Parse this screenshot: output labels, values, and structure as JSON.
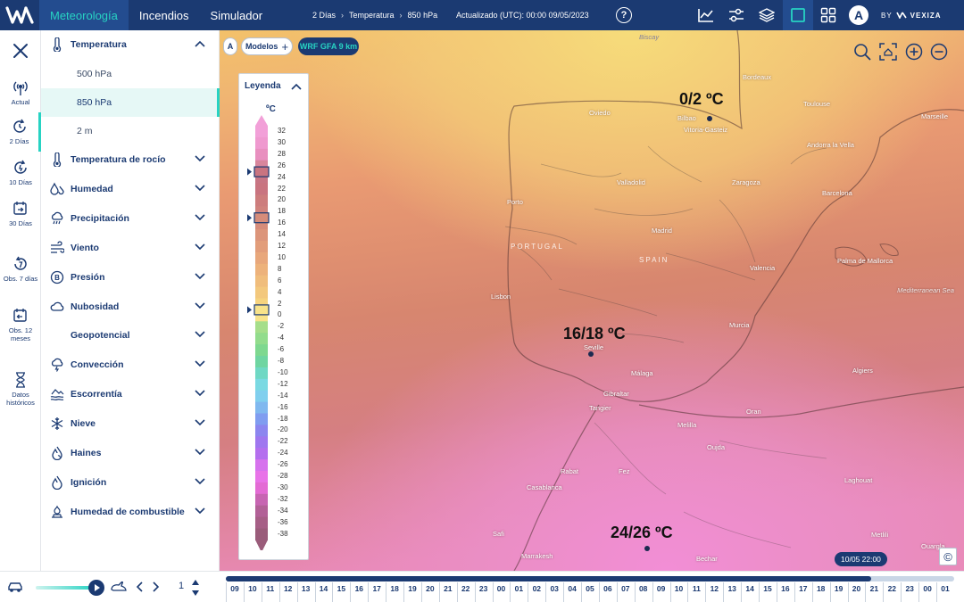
{
  "topbar": {
    "tabs": [
      {
        "label": "Meteorología",
        "active": true
      },
      {
        "label": "Incendios",
        "active": false
      },
      {
        "label": "Simulador",
        "active": false
      }
    ],
    "breadcrumb": [
      "2 Días",
      "Temperatura",
      "850 hPa"
    ],
    "updated": "Actualizado (UTC): 00:00 09/05/2023",
    "help_glyph": "?",
    "avatar_letter": "A",
    "brand_prefix": "BY",
    "brand_name": "VEXIZA",
    "icons": [
      "chart-icon",
      "sliders-icon",
      "layers-icon",
      "square-icon",
      "grid-icon"
    ]
  },
  "rail": {
    "items": [
      {
        "label": "Actual",
        "icon": "antenna-icon"
      },
      {
        "label": "2 Días",
        "icon": "clock-forward-icon",
        "active": true
      },
      {
        "label": "10 Días",
        "icon": "clock-forward-icon"
      },
      {
        "label": "30 Días",
        "icon": "calendar-forward-icon"
      },
      {
        "label": "Obs. 7 días",
        "icon": "clock-back-icon"
      },
      {
        "label": "Obs. 12 meses",
        "icon": "calendar-back-icon"
      },
      {
        "label": "Datos históricos",
        "icon": "hourglass-icon"
      }
    ]
  },
  "sidebar": {
    "temperatura": {
      "label": "Temperatura",
      "icon": "thermometer-icon",
      "expanded": true
    },
    "sub": [
      {
        "label": "500 hPa",
        "active": false
      },
      {
        "label": "850 hPa",
        "active": true
      },
      {
        "label": "2 m",
        "active": false
      }
    ],
    "items": [
      {
        "label": "Temperatura de rocío",
        "icon": "thermometer-icon"
      },
      {
        "label": "Humedad",
        "icon": "drops-icon"
      },
      {
        "label": "Precipitación",
        "icon": "rain-cloud-icon"
      },
      {
        "label": "Viento",
        "icon": "wind-icon"
      },
      {
        "label": "Presión",
        "icon": "pressure-icon"
      },
      {
        "label": "Nubosidad",
        "icon": "cloud-icon"
      },
      {
        "label": "Geopotencial",
        "icon": ""
      },
      {
        "label": "Convección",
        "icon": "storm-cloud-icon"
      },
      {
        "label": "Escorrentía",
        "icon": "runoff-icon"
      },
      {
        "label": "Nieve",
        "icon": "snowflake-icon"
      },
      {
        "label": "Haines",
        "icon": "flame-drop-icon"
      },
      {
        "label": "Ignición",
        "icon": "flame-icon"
      },
      {
        "label": "Humedad de combustible",
        "icon": "fuel-icon"
      }
    ]
  },
  "map": {
    "badge_letter": "A",
    "models_label": "Modelos",
    "model_name": "WRF GFA 9 km",
    "labels": [
      {
        "text": "0/2 ºC"
      },
      {
        "text": "16/18 ºC"
      },
      {
        "text": "24/26 ºC"
      }
    ],
    "cities": [
      "Biscay",
      "Bordeaux",
      "Toulouse",
      "Marseille",
      "Oviedo",
      "Bilbao",
      "Vitoria-Gasteiz",
      "Andorra la Vella",
      "Valladolid",
      "Zaragoza",
      "Barcelona",
      "Porto",
      "Madrid",
      "Valencia",
      "Palma de Mallorca",
      "Lisbon",
      "Seville",
      "Murcia",
      "Málaga",
      "Gibraltar",
      "Tangier",
      "Algiers",
      "Oran",
      "Melilla",
      "Oujda",
      "Rabat",
      "Fez",
      "Casablanca",
      "Laghouat",
      "Safi",
      "Marrakesh",
      "Bechar",
      "Metlili",
      "Ouargla"
    ],
    "countries": [
      "PORTUGAL",
      "SPAIN"
    ],
    "sea": "Mediterranean Sea",
    "copyright_glyph": "©"
  },
  "legend": {
    "title": "Leyenda",
    "unit": "ºC",
    "ticks": [
      "32",
      "30",
      "28",
      "26",
      "24",
      "22",
      "20",
      "18",
      "16",
      "14",
      "12",
      "10",
      "8",
      "6",
      "4",
      "2",
      "0",
      "-2",
      "-4",
      "-6",
      "-8",
      "-10",
      "-12",
      "-14",
      "-16",
      "-18",
      "-20",
      "-22",
      "-24",
      "-26",
      "-28",
      "-30",
      "-32",
      "-34",
      "-36",
      "-38"
    ],
    "colors": [
      "#f2a0d8",
      "#ef99cf",
      "#e88fbf",
      "#d8869c",
      "#c77584",
      "#c97480",
      "#cd7d7d",
      "#d0837d",
      "#d68c7a",
      "#dc957a",
      "#e29d7a",
      "#e8a77b",
      "#edb27b",
      "#f0bd7c",
      "#f3c87d",
      "#f6d37e",
      "#f8e38a",
      "#a6de8a",
      "#92dc8c",
      "#7ed88f",
      "#6fd5a1",
      "#6fd8c4",
      "#7ad9e2",
      "#80cfee",
      "#80b8ef",
      "#809df0",
      "#8c86ef",
      "#9f77ef",
      "#b46fee",
      "#d672ed",
      "#e873e8",
      "#e36bd4",
      "#c765b2",
      "#b26197",
      "#a65f86",
      "#9a5c7a"
    ],
    "markers": [
      {
        "after": "26",
        "color": "#c97480"
      },
      {
        "after": "18",
        "color": "#d68c7a"
      },
      {
        "after": "2",
        "color": "#f8e38a"
      }
    ]
  },
  "timeline": {
    "hours": [
      "09",
      "10",
      "11",
      "12",
      "13",
      "14",
      "15",
      "16",
      "17",
      "18",
      "19",
      "20",
      "21",
      "22",
      "23",
      "00",
      "01",
      "02",
      "03",
      "04",
      "05",
      "06",
      "07",
      "08",
      "09",
      "10",
      "11",
      "12",
      "13",
      "14",
      "15",
      "16",
      "17",
      "18",
      "19",
      "20",
      "21",
      "22",
      "23",
      "00",
      "01"
    ],
    "current_label": "10/05 22:00",
    "page": "1",
    "progress_fraction": 0.886
  }
}
